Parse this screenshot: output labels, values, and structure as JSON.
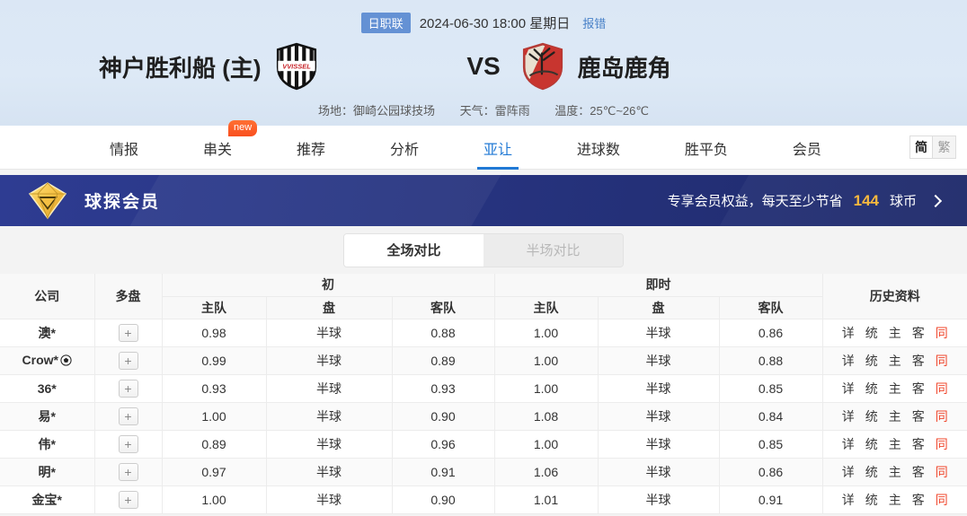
{
  "colors": {
    "league_badge": "#6491d4",
    "link": "#4a82c8",
    "active_tab": "#2079d5",
    "banner_bg": "#273480",
    "gold": "#f7b93e",
    "history_red": "#f0482e"
  },
  "match_header": {
    "league_badge": "日职联",
    "datetime": "2024-06-30 18:00 星期日",
    "report_error_link": "报错",
    "home_team": "神户胜利船 (主)",
    "home_logo_text": "VVISSEL",
    "vs": "VS",
    "away_team": "鹿岛鹿角",
    "venue_label": "场地：御崎公园球技场",
    "weather_label": "天气：雷阵雨",
    "temperature_label": "温度：25℃~26℃"
  },
  "nav": {
    "tabs": [
      {
        "id": "qingbao",
        "label": "情报",
        "active": false
      },
      {
        "id": "chuanguan",
        "label": "串关",
        "active": false,
        "badge": "new"
      },
      {
        "id": "tuijian",
        "label": "推荐",
        "active": false
      },
      {
        "id": "fenxi",
        "label": "分析",
        "active": false
      },
      {
        "id": "yarang",
        "label": "亚让",
        "active": true
      },
      {
        "id": "jinqiushu",
        "label": "进球数",
        "active": false
      },
      {
        "id": "shengpingfu",
        "label": "胜平负",
        "active": false
      },
      {
        "id": "huiyuan",
        "label": "会员",
        "active": false
      }
    ],
    "lang_simplified": "简",
    "lang_traditional": "繁"
  },
  "vip_banner": {
    "title": "球探会员",
    "promo_prefix": "专享会员权益，每天至少节省",
    "promo_amount": "144",
    "promo_suffix": "球币",
    "diamond_icon": "vip-diamond-icon"
  },
  "view_toggle": {
    "full": "全场对比",
    "half": "半场对比"
  },
  "odds_table": {
    "headers": {
      "company": "公司",
      "multi": "多盘",
      "initial": "初",
      "live": "即时",
      "home": "主队",
      "handicap": "盘",
      "away": "客队",
      "history": "历史资料"
    },
    "plus_label": "+",
    "history_links": [
      "详",
      "统",
      "主",
      "客",
      "同"
    ],
    "history_red_label": "同",
    "rows": [
      {
        "company": "澳*",
        "ball": false,
        "init": [
          "0.98",
          "半球",
          "0.88"
        ],
        "live": [
          "1.00",
          "半球",
          "0.86"
        ]
      },
      {
        "company": "Crow*",
        "ball": true,
        "init": [
          "0.99",
          "半球",
          "0.89"
        ],
        "live": [
          "1.00",
          "半球",
          "0.88"
        ]
      },
      {
        "company": "36*",
        "ball": false,
        "init": [
          "0.93",
          "半球",
          "0.93"
        ],
        "live": [
          "1.00",
          "半球",
          "0.85"
        ]
      },
      {
        "company": "易*",
        "ball": false,
        "init": [
          "1.00",
          "半球",
          "0.90"
        ],
        "live": [
          "1.08",
          "半球",
          "0.84"
        ]
      },
      {
        "company": "伟*",
        "ball": false,
        "init": [
          "0.89",
          "半球",
          "0.96"
        ],
        "live": [
          "1.00",
          "半球",
          "0.85"
        ]
      },
      {
        "company": "明*",
        "ball": false,
        "init": [
          "0.97",
          "半球",
          "0.91"
        ],
        "live": [
          "1.06",
          "半球",
          "0.86"
        ]
      },
      {
        "company": "金宝*",
        "ball": false,
        "init": [
          "1.00",
          "半球",
          "0.90"
        ],
        "live": [
          "1.01",
          "半球",
          "0.91"
        ]
      }
    ]
  }
}
